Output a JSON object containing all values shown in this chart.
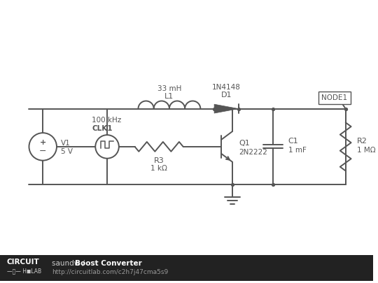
{
  "bg_color": "#ffffff",
  "footer_bg": "#222222",
  "line_color": "#555555",
  "line_width": 1.4,
  "footer_text_normal": "saundw / ",
  "footer_text_bold": "Boost Converter",
  "footer_url": "http://circuitlab.com/c2h7j47cma5s9",
  "node1_label": "NODE1",
  "V1_label": "V1",
  "V1_value": "5 V",
  "CLK1_label": "CLK1",
  "CLK1_value": "100 kHz",
  "L1_label": "L1",
  "L1_value": "33 mH",
  "D1_label": "D1",
  "D1_value": "1N4148",
  "R3_label": "R3",
  "R3_value": "1 kΩ",
  "Q1_label": "Q1",
  "Q1_value": "2N2222",
  "C1_label": "C1",
  "C1_value": "1 mF",
  "R2_label": "R2",
  "R2_value": "1 MΩ"
}
